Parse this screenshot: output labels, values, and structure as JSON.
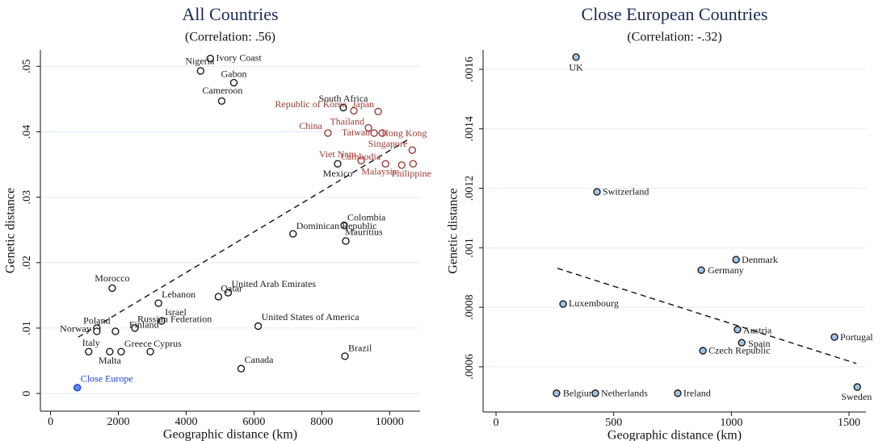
{
  "chart_data": [
    {
      "type": "scatter",
      "title": "All Countries",
      "subtitle": "(Correlation: .56)",
      "x_label": "Geographic distance (km)",
      "y_label": "Genetic distance",
      "xlim": [
        -300,
        10900
      ],
      "ylim": [
        -0.0027,
        0.0525
      ],
      "xticks": [
        0,
        2000,
        4000,
        6000,
        8000,
        10000
      ],
      "yticks": [
        0,
        {
          "value": 0.01,
          "label": ".01"
        },
        {
          "value": 0.02,
          "label": ".02"
        },
        {
          "value": 0.03,
          "label": ".03"
        },
        {
          "value": 0.04,
          "label": ".04"
        },
        {
          "value": 0.05,
          "label": ".05"
        }
      ],
      "grid": true,
      "series": [
        {
          "color": "#1a1a1a",
          "fill": "#ffffff",
          "labels": [
            "Ivory Coast",
            "Nigeria",
            "Gabon",
            "Cameroon",
            "South Africa",
            "Mexico",
            "Colombia",
            "Dominican Republic",
            "Mauritius",
            "Morocco",
            "Lebanon",
            "United Arab Emirates",
            "Qatar",
            "Israel",
            "Russian Federation",
            "United States of America",
            "Poland",
            "Norway",
            "Finland",
            "Italy",
            "Malta",
            "Greece",
            "Cyprus",
            "Canada",
            "Brazil"
          ],
          "x": [
            4713,
            4426,
            5407,
            5048,
            8636,
            8469,
            8660,
            7153,
            8708,
            1818,
            3182,
            5239,
            4952,
            3278,
            2488,
            6124,
            1364,
            1364,
            1914,
            1124,
            1746,
            2081,
            2943,
            5622,
            8684
          ],
          "y": [
            0.0512,
            0.0493,
            0.0475,
            0.0447,
            0.0437,
            0.0351,
            0.0257,
            0.0244,
            0.0233,
            0.0161,
            0.0138,
            0.0154,
            0.0148,
            0.0111,
            0.01,
            0.0103,
            0.01,
            0.0095,
            0.0095,
            0.0064,
            0.0064,
            0.0064,
            0.0064,
            0.0038,
            0.0057
          ]
        },
        {
          "color": "#9b3b36",
          "fill": "#ffffff",
          "labels": [
            "Japan",
            "Republic of Korea",
            "China",
            "Thailand",
            "Taiwan",
            "Hong Kong",
            "Singapore",
            "Viet Nam",
            "Cambodia",
            "Malaysia",
            "Philippine"
          ],
          "x": [
            9665,
            8947,
            8182,
            9378,
            9545,
            9785,
            10670,
            9163,
            9880,
            10359,
            10694
          ],
          "y": [
            0.0431,
            0.0432,
            0.0398,
            0.0406,
            0.0398,
            0.0398,
            0.0372,
            0.0356,
            0.0351,
            0.0349,
            0.0351
          ]
        },
        {
          "color": "#1f3fd6",
          "fill": "#5b8cf0",
          "labels": [
            "Close Europe"
          ],
          "x": [
            789
          ],
          "y": [
            0.0009
          ]
        }
      ],
      "trend_line": {
        "x": [
          813,
          10574
        ],
        "y": [
          0.0086,
          0.0389
        ]
      }
    },
    {
      "type": "scatter",
      "title": "Close European Countries",
      "subtitle": "(Correlation: -.32)",
      "x_label": "Geographic distance (km)",
      "y_label": "Genetic distance",
      "xlim": [
        -55,
        1572
      ],
      "ylim": [
        0.000448,
        0.001665
      ],
      "xticks": [
        0,
        500,
        1000,
        1500
      ],
      "yticks": [
        {
          "value": 0.0006,
          "label": ".0006"
        },
        {
          "value": 0.0008,
          "label": ".0008"
        },
        {
          "value": 0.001,
          "label": ".001"
        },
        {
          "value": 0.0012,
          "label": ".0012"
        },
        {
          "value": 0.0014,
          "label": ".0014"
        },
        {
          "value": 0.0016,
          "label": ".0016"
        }
      ],
      "grid": true,
      "series": [
        {
          "color": "#1a1a1a",
          "fill": "#9ec5e8",
          "labels": [
            "UK",
            "Switzerland",
            "Denmark",
            "Germany",
            "Luxembourg",
            "Austria",
            "Portugal",
            "Spain",
            "Czech Republic",
            "Sweden",
            "Belgium",
            "Netherlands",
            "Ireland"
          ],
          "x": [
            340,
            429,
            1020,
            872,
            285,
            1026,
            1438,
            1044,
            879,
            1535,
            257,
            422,
            772
          ],
          "y": [
            0.001641,
            0.001188,
            0.00096,
            0.000925,
            0.000811,
            0.000725,
            0.0007,
            0.000681,
            0.000654,
            0.000532,
            0.000511,
            0.000511,
            0.000511
          ]
        }
      ],
      "trend_line": {
        "x": [
          261,
          1531
        ],
        "y": [
          0.000931,
          0.000611
        ]
      }
    }
  ]
}
